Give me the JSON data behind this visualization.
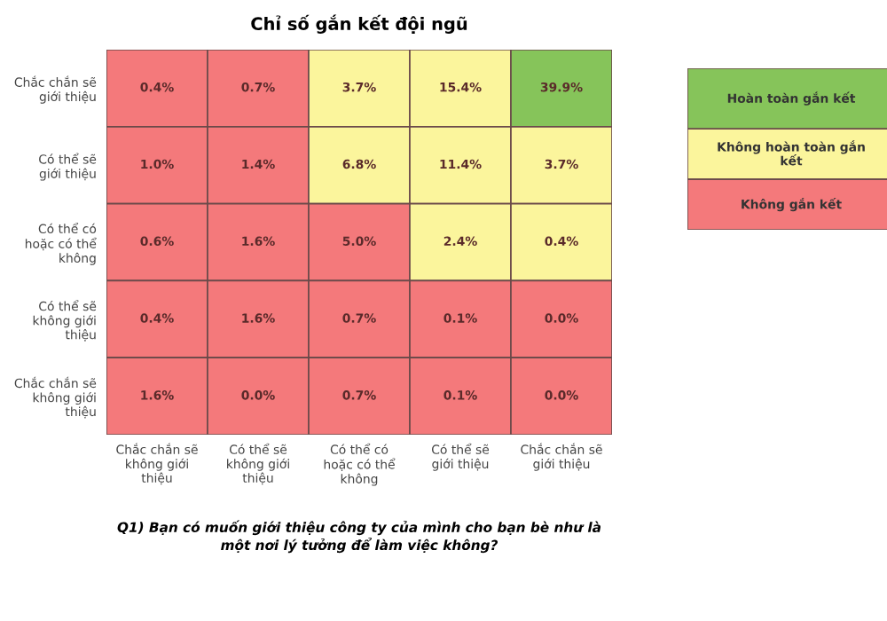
{
  "chart_data": [
    {
      "type": "heatmap",
      "title": "Chỉ số gắn kết đội ngũ",
      "xlabel": "Q1) Bạn có muốn giới thiệu công ty của mình cho bạn bè như là một nơi lý tưởng để làm việc không?",
      "categories": [
        "Chắc chắn sẽ không giới thiệu",
        "Có thể sẽ không giới thiệu",
        "Có thể có hoặc có thể không",
        "Có thể sẽ giới thiệu",
        "Chắc chắn sẽ giới thiệu"
      ],
      "y_categories": [
        "Chắc chắn sẽ giới thiệu",
        "Có thể sẽ giới thiệu",
        "Có thể có hoặc có thể không",
        "Có thể sẽ không giới thiệu",
        "Chắc chắn sẽ không giới thiệu"
      ],
      "cells": [
        [
          0.4,
          0.7,
          3.7,
          15.4,
          39.9
        ],
        [
          1.0,
          1.4,
          6.8,
          11.4,
          3.7
        ],
        [
          0.6,
          1.6,
          5.0,
          2.4,
          0.4
        ],
        [
          0.4,
          1.6,
          0.7,
          0.1,
          0.0
        ],
        [
          1.6,
          0.0,
          0.7,
          0.1,
          0.0
        ]
      ],
      "cell_labels": [
        [
          "0.4%",
          "0.7%",
          "3.7%",
          "15.4%",
          "39.9%"
        ],
        [
          "1.0%",
          "1.4%",
          "6.8%",
          "11.4%",
          "3.7%"
        ],
        [
          "0.6%",
          "1.6%",
          "5.0%",
          "2.4%",
          "0.4%"
        ],
        [
          "0.4%",
          "1.6%",
          "0.7%",
          "0.1%",
          "0.0%"
        ],
        [
          "1.6%",
          "0.0%",
          "0.7%",
          "0.1%",
          "0.0%"
        ]
      ],
      "colors": [
        [
          "#f4797b",
          "#f4797b",
          "#fbf59c",
          "#fbf59c",
          "#86c45a"
        ],
        [
          "#f4797b",
          "#f4797b",
          "#fbf59c",
          "#fbf59c",
          "#fbf59c"
        ],
        [
          "#f4797b",
          "#f4797b",
          "#f4797b",
          "#fbf59c",
          "#fbf59c"
        ],
        [
          "#f4797b",
          "#f4797b",
          "#f4797b",
          "#f4797b",
          "#f4797b"
        ],
        [
          "#f4797b",
          "#f4797b",
          "#f4797b",
          "#f4797b",
          "#f4797b"
        ]
      ]
    },
    {
      "type": "other",
      "categories": [
        "Hoàn toàn gắn kết",
        "Không hoàn toàn gắn kết",
        "Không gắn kết"
      ],
      "colors": [
        "#86c45a",
        "#fbf59c",
        "#f4797b"
      ]
    }
  ]
}
